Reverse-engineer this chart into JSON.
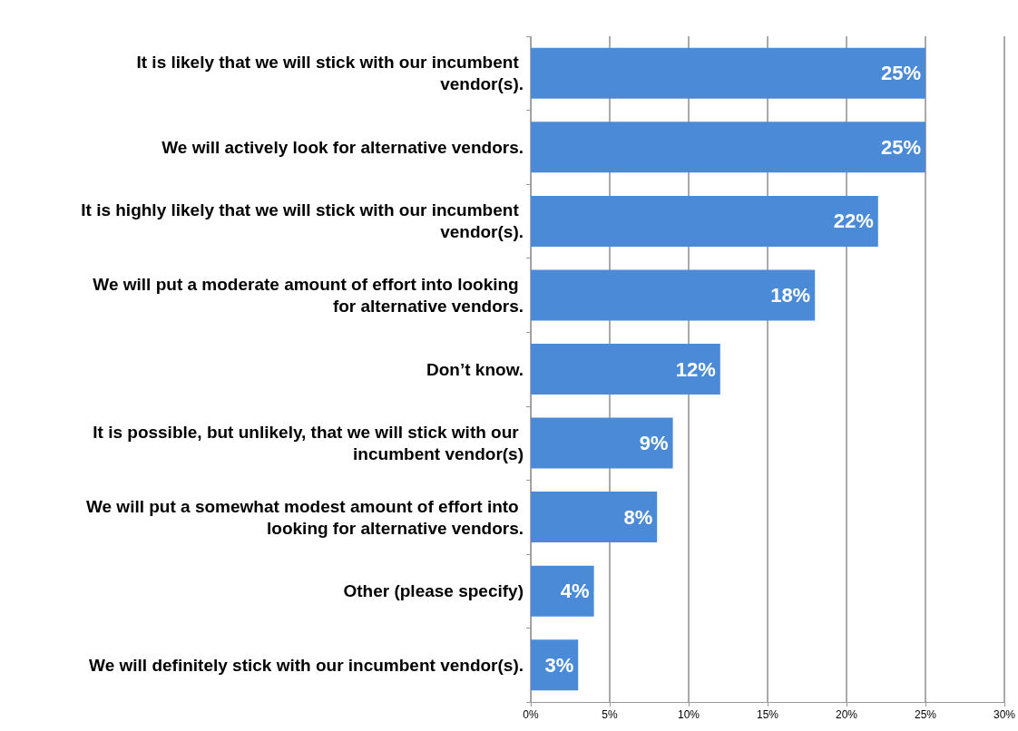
{
  "chart_data": {
    "type": "bar",
    "orientation": "horizontal",
    "categories": [
      "It is likely that we will stick with our incumbent vendor(s).",
      "We will actively look for alternative vendors.",
      "It is highly likely that we will stick with our incumbent vendor(s).",
      "We will put a moderate amount of effort into looking for alternative vendors.",
      "Don’t know.",
      "It is possible, but unlikely, that we will stick with our incumbent vendor(s)",
      "We will put a somewhat modest amount of effort into looking for alternative vendors.",
      "Other (please specify)",
      "We will definitely stick with our incumbent vendor(s)."
    ],
    "values": [
      25,
      25,
      22,
      18,
      12,
      9,
      8,
      4,
      3
    ],
    "value_labels": [
      "25%",
      "25%",
      "22%",
      "18%",
      "12%",
      "9%",
      "8%",
      "4%",
      "3%"
    ],
    "color": "#4a8ad6",
    "xlim": [
      0,
      30
    ],
    "xticks": [
      {
        "value": 0,
        "label": "0%"
      },
      {
        "value": 5,
        "label": "5%"
      },
      {
        "value": 10,
        "label": "10%"
      },
      {
        "value": 15,
        "label": "15%"
      },
      {
        "value": 20,
        "label": "20%"
      },
      {
        "value": 25,
        "label": "25%"
      },
      {
        "value": 30,
        "label": "30%"
      }
    ],
    "grid": "x"
  }
}
